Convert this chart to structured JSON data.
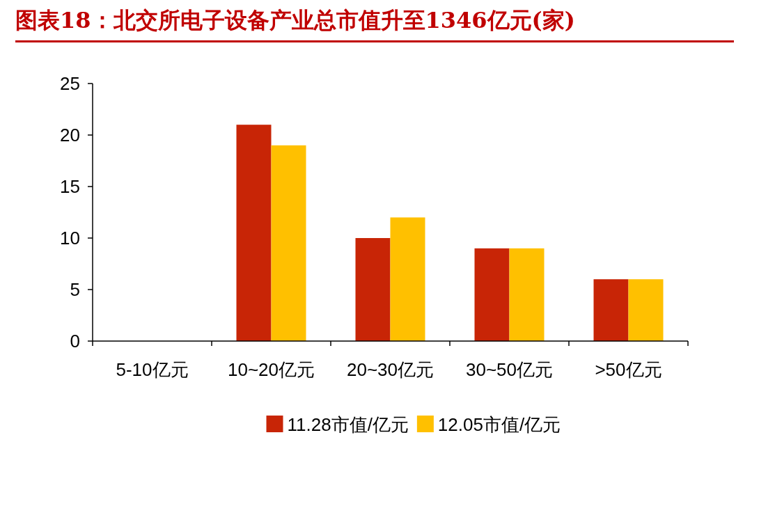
{
  "chart_data": {
    "type": "bar",
    "title": "图表18：北交所电子设备产业总市值升至1346亿元(家)",
    "categories": [
      "5-10亿元",
      "10~20亿元",
      "20~30亿元",
      "30~50亿元",
      ">50亿元"
    ],
    "series": [
      {
        "name": "11.28市值/亿元",
        "color": "#c82506",
        "values": [
          0,
          21,
          10,
          9,
          6
        ]
      },
      {
        "name": "12.05市值/亿元",
        "color": "#ffc000",
        "values": [
          0,
          19,
          12,
          9,
          6
        ]
      }
    ],
    "ylim": [
      0,
      25
    ],
    "yticks": [
      0,
      5,
      10,
      15,
      20,
      25
    ],
    "grid": false,
    "legend": "bottom"
  }
}
